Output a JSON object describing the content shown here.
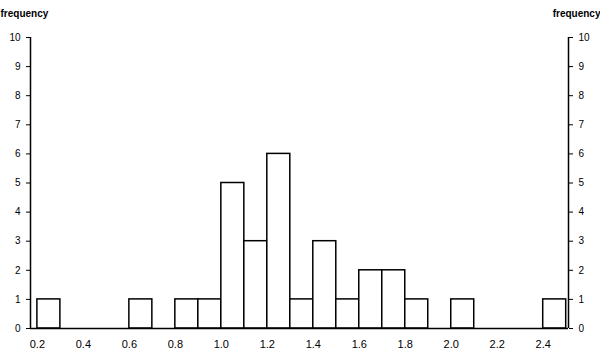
{
  "chart_data": {
    "type": "histogram",
    "ylabel": "frequency",
    "bins": [
      0.2,
      0.3,
      0.4,
      0.5,
      0.6,
      0.7,
      0.8,
      0.9,
      1.0,
      1.1,
      1.2,
      1.3,
      1.4,
      1.5,
      1.6,
      1.7,
      1.8,
      1.9,
      2.0,
      2.1,
      2.2,
      2.3,
      2.4,
      2.5
    ],
    "values": [
      1,
      0,
      0,
      0,
      1,
      0,
      1,
      1,
      5,
      3,
      6,
      1,
      3,
      1,
      2,
      2,
      1,
      0,
      1,
      0,
      0,
      0,
      1
    ],
    "xlim": [
      0.17,
      2.51
    ],
    "ylim": [
      0,
      10
    ],
    "xticks": [
      0.2,
      0.4,
      0.6,
      0.8,
      {
        "value": 1,
        "label": "1.0"
      },
      1.2,
      1.4,
      1.6,
      1.8,
      {
        "value": 2,
        "label": "2.0"
      },
      2.2,
      2.4
    ],
    "yticks": [
      0,
      1,
      2,
      3,
      4,
      5,
      6,
      7,
      8,
      9,
      10
    ]
  }
}
